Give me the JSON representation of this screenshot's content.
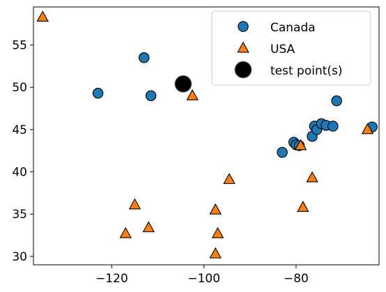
{
  "chart_data": {
    "type": "scatter",
    "title": "",
    "xlabel": "",
    "ylabel": "",
    "xlim": [
      -137,
      -62
    ],
    "ylim": [
      29,
      59.5
    ],
    "xticks": [
      -120,
      -100,
      -80
    ],
    "yticks": [
      30,
      35,
      40,
      45,
      50,
      55
    ],
    "grid": false,
    "legend_position": "top-right",
    "series": [
      {
        "name": "Canada",
        "marker": "circle",
        "color": "#1f77b4",
        "points": [
          {
            "x": -123,
            "y": 49.3
          },
          {
            "x": -113,
            "y": 53.5
          },
          {
            "x": -111.5,
            "y": 49.0
          },
          {
            "x": -83,
            "y": 42.3
          },
          {
            "x": -80.5,
            "y": 43.5
          },
          {
            "x": -80,
            "y": 43.2
          },
          {
            "x": -79.3,
            "y": 43.1
          },
          {
            "x": -76.5,
            "y": 44.2
          },
          {
            "x": -76,
            "y": 45.4
          },
          {
            "x": -75.5,
            "y": 45.0
          },
          {
            "x": -74.5,
            "y": 45.7
          },
          {
            "x": -73.5,
            "y": 45.5
          },
          {
            "x": -72,
            "y": 45.4
          },
          {
            "x": -71.2,
            "y": 48.4
          },
          {
            "x": -63.5,
            "y": 45.3
          }
        ]
      },
      {
        "name": "USA",
        "marker": "triangle",
        "color": "#ff7f0e",
        "points": [
          {
            "x": -135,
            "y": 58.3
          },
          {
            "x": -117,
            "y": 32.7
          },
          {
            "x": -115,
            "y": 36.1
          },
          {
            "x": -112,
            "y": 33.4
          },
          {
            "x": -102.5,
            "y": 49.0
          },
          {
            "x": -97.5,
            "y": 30.3
          },
          {
            "x": -97.5,
            "y": 35.5
          },
          {
            "x": -97,
            "y": 32.7
          },
          {
            "x": -94.5,
            "y": 39.1
          },
          {
            "x": -79,
            "y": 43.1
          },
          {
            "x": -78.5,
            "y": 35.8
          },
          {
            "x": -76.5,
            "y": 39.3
          },
          {
            "x": -64.5,
            "y": 45.0
          }
        ]
      },
      {
        "name": "test point(s)",
        "marker": "circle-large",
        "color": "#000000",
        "points": [
          {
            "x": -104.5,
            "y": 50.4
          }
        ]
      }
    ]
  }
}
